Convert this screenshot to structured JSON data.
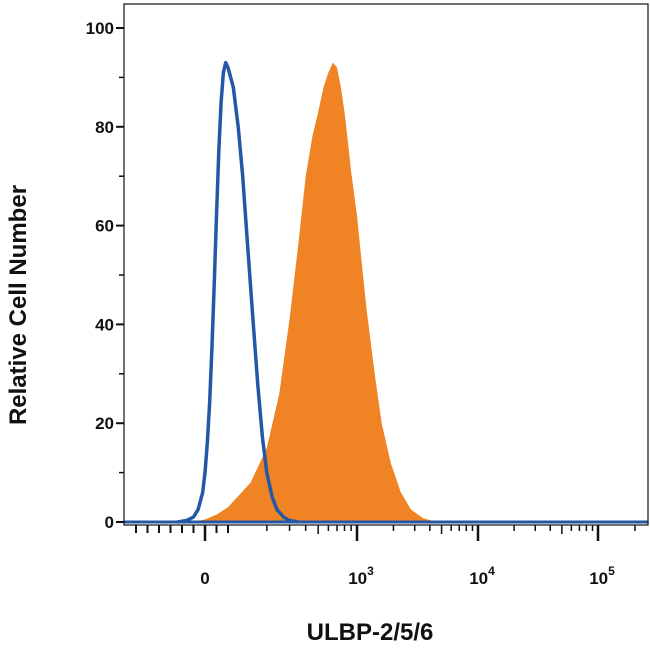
{
  "chart_data": {
    "type": "area",
    "title": "",
    "xlabel": "ULBP-2/5/6",
    "ylabel": "Relative Cell Number",
    "x_scale": "biexponential",
    "xlim": [
      -300,
      200000
    ],
    "ylim": [
      0,
      100
    ],
    "y_ticks": [
      "0",
      "20",
      "40",
      "60",
      "80",
      "100"
    ],
    "x_ticks": [
      {
        "value": 0,
        "base": "0",
        "exp": ""
      },
      {
        "value": 1000,
        "base": "10",
        "exp": "3"
      },
      {
        "value": 10000,
        "base": "10",
        "exp": "4"
      },
      {
        "value": 100000,
        "base": "10",
        "exp": "5"
      }
    ],
    "grid": false,
    "legend": "none",
    "series": [
      {
        "role": "isotype-control",
        "style": "outline",
        "color": "#2458a6",
        "x": [
          -120,
          -80,
          -50,
          -30,
          -10,
          0,
          10,
          20,
          30,
          40,
          50,
          60,
          70,
          80,
          90,
          100,
          110,
          120,
          130,
          140,
          155,
          170,
          185,
          200,
          220,
          240,
          270,
          300,
          350
        ],
        "y": [
          0,
          0.3,
          1,
          2.5,
          6,
          10,
          16,
          24,
          35,
          48,
          62,
          75,
          85,
          91,
          93,
          92,
          88,
          80,
          70,
          58,
          42,
          28,
          17,
          10,
          5,
          2.5,
          1,
          0.3,
          0
        ]
      },
      {
        "role": "stained",
        "style": "filled",
        "color": "#f08424",
        "x": [
          -60,
          0,
          50,
          100,
          150,
          200,
          250,
          300,
          350,
          400,
          450,
          500,
          550,
          600,
          650,
          700,
          750,
          800,
          850,
          900,
          1000,
          1100,
          1200,
          1400,
          1600,
          1900,
          2300,
          2800,
          3500,
          4500
        ],
        "y": [
          0,
          0.5,
          1.5,
          3,
          8,
          15,
          26,
          41,
          56,
          70,
          78,
          83,
          88,
          91,
          93,
          92,
          88,
          83,
          77,
          71,
          62,
          52,
          43,
          30,
          20,
          12,
          6,
          2.5,
          0.8,
          0
        ]
      }
    ]
  }
}
